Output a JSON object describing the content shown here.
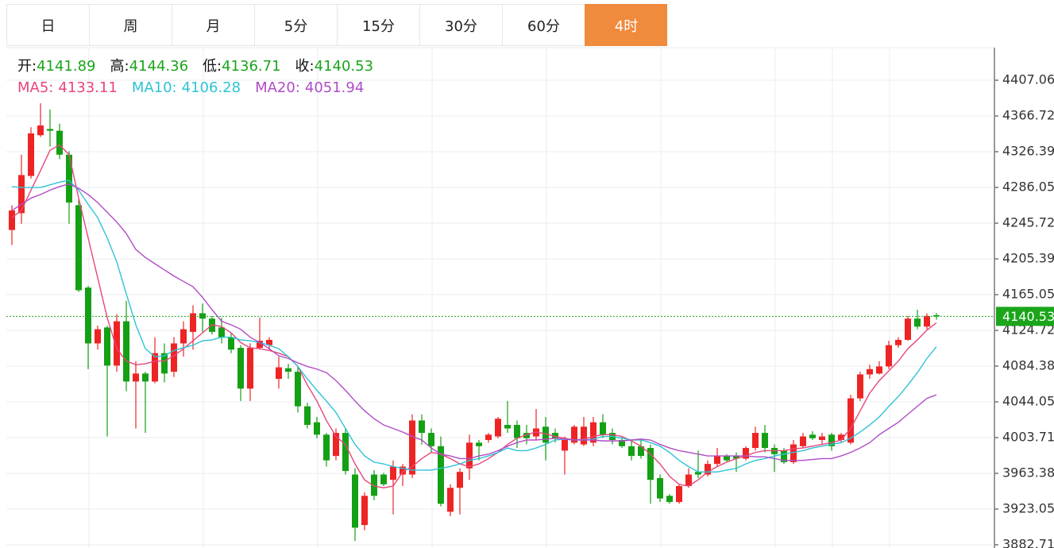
{
  "tabs": [
    "日",
    "周",
    "月",
    "5分",
    "15分",
    "30分",
    "60分",
    "4时"
  ],
  "active_tab": 7,
  "chart_data": {
    "type": "candlestick",
    "legend_labels": {
      "open": "开:",
      "high": "高:",
      "low": "低:",
      "close": "收:"
    },
    "up_color": "#ee2424",
    "down_color": "#14a014",
    "last_price_color": "#1aa51a",
    "ylim": [
      3879.1,
      4443.8
    ],
    "yticks": [
      4407.06,
      4366.72,
      4326.39,
      4286.05,
      4245.72,
      4205.39,
      4165.05,
      4124.72,
      4084.38,
      4044.05,
      4003.71,
      3963.38,
      3923.05,
      3882.71
    ],
    "grid": true,
    "open": [
      4238,
      4257,
      4299,
      4345,
      4352,
      4350,
      4323,
      4266,
      4173,
      4110,
      4128,
      4085,
      4135,
      4067,
      4076,
      4067,
      4099,
      4078,
      4110,
      4123,
      4144,
      4138,
      4128,
      4117,
      4105,
      4059,
      4105,
      4108,
      4070,
      4082,
      4078,
      4039,
      4021,
      4007,
      3983,
      4009,
      3962,
      3905,
      3962,
      3962,
      3956,
      3962,
      3962,
      4023,
      4009,
      3994,
      3920,
      3947,
      3969,
      3998,
      4001,
      4005,
      4018,
      4018,
      4009,
      4005,
      4016,
      4009,
      3989,
      3998,
      3996,
      3998,
      4021,
      4009,
      4001,
      3994,
      3994,
      3992,
      3958,
      3938,
      3931,
      3949,
      3965,
      3962,
      3974,
      3983,
      3983,
      3980,
      3992,
      4009,
      3992,
      3989,
      3976,
      3994,
      4007,
      4001,
      4007,
      4001,
      3998,
      4048,
      4075,
      4076,
      4084,
      4108,
      4114,
      4138,
      4129,
      4141.89
    ],
    "high": [
      4266,
      4323,
      4354,
      4381,
      4374,
      4358,
      4327,
      4273,
      4175,
      4130,
      4130,
      4143,
      4158,
      4090,
      4078,
      4117,
      4110,
      4117,
      4135,
      4153,
      4155,
      4141,
      4139,
      4122,
      4108,
      4110,
      4139,
      4117,
      4095,
      4087,
      4084,
      4043,
      4027,
      4009,
      4014,
      4014,
      3969,
      3942,
      3967,
      3964,
      3978,
      3974,
      4030,
      4030,
      4014,
      4005,
      3951,
      3969,
      4007,
      4001,
      4009,
      4027,
      4045,
      4023,
      4018,
      4036,
      4027,
      4014,
      4005,
      4018,
      4027,
      4027,
      4030,
      4014,
      4005,
      4001,
      4001,
      3996,
      3962,
      3940,
      3951,
      3969,
      3989,
      3978,
      3992,
      3985,
      3987,
      3994,
      4016,
      4018,
      3996,
      3992,
      4001,
      4009,
      4011,
      4009,
      4009,
      4009,
      4052,
      4078,
      4086,
      4090,
      4113,
      4117,
      4141,
      4148,
      4144,
      4144.36
    ],
    "low": [
      4221,
      4245,
      4296,
      4343,
      4332,
      4318,
      4245,
      4168,
      4081,
      4103,
      4005,
      4078,
      4056,
      4014,
      4009,
      4065,
      4066,
      4072,
      4095,
      4103,
      4123,
      4120,
      4110,
      4099,
      4045,
      4045,
      4103,
      4103,
      4059,
      4070,
      4032,
      4014,
      4003,
      3971,
      3978,
      3962,
      3887,
      3899,
      3933,
      3949,
      3917,
      3949,
      3958,
      3996,
      3987,
      3926,
      3915,
      3917,
      3956,
      3978,
      3998,
      4003,
      4009,
      3992,
      3996,
      4001,
      3978,
      3998,
      3962,
      3996,
      3994,
      3994,
      4003,
      3996,
      3992,
      3978,
      3980,
      3929,
      3931,
      3929,
      3929,
      3947,
      3958,
      3960,
      3971,
      3976,
      3965,
      3978,
      3989,
      3987,
      3965,
      3974,
      3974,
      3992,
      4001,
      3996,
      3989,
      3998,
      3996,
      4045,
      4070,
      4075,
      4081,
      4105,
      4113,
      4126,
      4126,
      4136.71
    ],
    "close": [
      4260,
      4300,
      4347,
      4356,
      4350,
      4323,
      4269,
      4170,
      4110,
      4126,
      4085,
      4135,
      4067,
      4076,
      4067,
      4099,
      4076,
      4110,
      4126,
      4144,
      4138,
      4123,
      4117,
      4103,
      4059,
      4105,
      4113,
      4114,
      4083,
      4078,
      4039,
      4018,
      4007,
      3978,
      4009,
      3966,
      3902,
      3938,
      3938,
      3951,
      3971,
      3971,
      4023,
      4009,
      3994,
      3929,
      3947,
      3965,
      3998,
      3994,
      4007,
      4025,
      4014,
      4003,
      4003,
      4014,
      3998,
      4003,
      4001,
      4016,
      4016,
      4021,
      4007,
      4001,
      3994,
      3983,
      3983,
      3956,
      3935,
      3931,
      3949,
      3962,
      3962,
      3974,
      3983,
      3978,
      3980,
      3992,
      4009,
      3992,
      3985,
      3976,
      3996,
      4005,
      4003,
      4005,
      3994,
      4007,
      4048,
      4075,
      4081,
      4084,
      4108,
      4114,
      4138,
      4129,
      4141,
      4140.53
    ],
    "series": [
      {
        "name": "MA5:",
        "color": "#e8457c",
        "values": [
          4252,
          4260,
          4283,
          4305,
          4328,
          4334,
          4323,
          4274,
          4229,
          4184,
          4139,
          4104,
          4090,
          4086,
          4087,
          4090,
          4090,
          4096,
          4104,
          4113,
          4122,
          4131,
          4129,
          4122,
          4111,
          4105,
          4104,
          4102,
          4099,
          4095,
          4084,
          4063,
          4045,
          4023,
          4005,
          3996,
          3974,
          3956,
          3949,
          3947,
          3949,
          3965,
          3971,
          3980,
          3987,
          3985,
          3980,
          3974,
          3971,
          3974,
          3980,
          3987,
          3996,
          4003,
          4007,
          4010,
          4008,
          4005,
          4003,
          4001,
          4002,
          4005,
          4007,
          4007,
          4005,
          4000,
          3994,
          3985,
          3974,
          3960,
          3951,
          3949,
          3956,
          3965,
          3971,
          3976,
          3980,
          3983,
          3987,
          3989,
          3989,
          3989,
          3991,
          3992,
          3994,
          3996,
          3998,
          4001,
          4014,
          4034,
          4054,
          4068,
          4079,
          4090,
          4104,
          4114,
          4125,
          4133.11
        ]
      },
      {
        "name": "MA10:",
        "color": "#2ec3d6",
        "values": [
          4287,
          4286,
          4286,
          4286,
          4289,
          4292,
          4294,
          4283,
          4267,
          4252,
          4229,
          4202,
          4166,
          4131,
          4104,
          4095,
          4096,
          4102,
          4105,
          4108,
          4113,
          4114,
          4117,
          4117,
          4114,
          4113,
          4111,
          4108,
          4104,
          4095,
          4084,
          4070,
          4057,
          4045,
          4032,
          4014,
          3996,
          3983,
          3976,
          3974,
          3971,
          3969,
          3967,
          3967,
          3967,
          3969,
          3971,
          3974,
          3978,
          3980,
          3983,
          3987,
          3992,
          3989,
          3989,
          3992,
          3996,
          4001,
          4002,
          4001,
          4001,
          4002,
          4005,
          4005,
          4003,
          4001,
          4001,
          3998,
          3994,
          3987,
          3978,
          3971,
          3965,
          3965,
          3965,
          3967,
          3969,
          3974,
          3978,
          3980,
          3983,
          3985,
          3987,
          3989,
          3992,
          3994,
          3996,
          3998,
          4003,
          4010,
          4018,
          4027,
          4039,
          4050,
          4063,
          4077,
          4093,
          4106.28
        ]
      },
      {
        "name": "MA20:",
        "color": "#b04cc6",
        "values": [
          4260,
          4267,
          4274,
          4278,
          4283,
          4287,
          4290,
          4285,
          4278,
          4269,
          4258,
          4247,
          4234,
          4216,
          4207,
          4200,
          4193,
          4186,
          4180,
          4174,
          4162,
          4148,
          4135,
          4131,
          4126,
          4117,
          4111,
          4104,
          4096,
          4093,
          4088,
          4084,
          4081,
          4077,
          4068,
          4057,
          4045,
          4034,
          4025,
          4018,
          4014,
          4010,
          4005,
          4001,
          3992,
          3985,
          3983,
          3980,
          3980,
          3983,
          3985,
          3989,
          3994,
          3998,
          4001,
          4001,
          4002,
          4003,
          4002,
          4001,
          4001,
          4001,
          4000,
          4000,
          4000,
          4001,
          4002,
          4001,
          3996,
          3992,
          3989,
          3987,
          3985,
          3983,
          3983,
          3983,
          3983,
          3983,
          3982,
          3982,
          3980,
          3978,
          3978,
          3978,
          3979,
          3980,
          3980,
          3983,
          3987,
          3992,
          3998,
          4007,
          4014,
          4021,
          4030,
          4039,
          4048,
          4051.94
        ]
      }
    ]
  }
}
